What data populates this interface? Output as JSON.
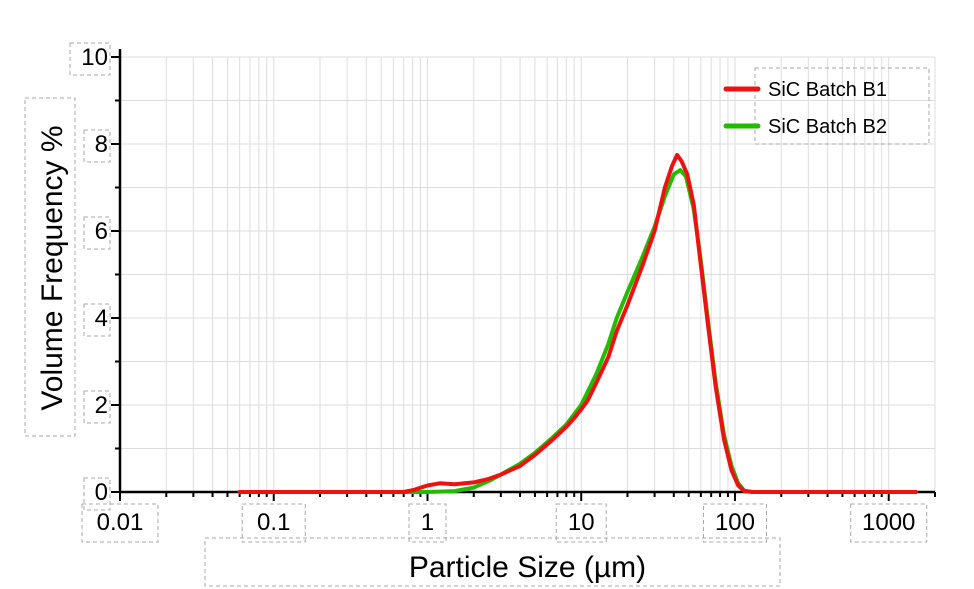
{
  "chart_data": {
    "type": "line",
    "xlabel": "Particle Size (µm)",
    "ylabel": "Volume Frequency %",
    "xscale": "log",
    "xlim": [
      0.01,
      2000
    ],
    "ylim": [
      0,
      10
    ],
    "x_ticks": [
      {
        "value": 0.01,
        "label": "0.01"
      },
      {
        "value": 0.1,
        "label": "0.1"
      },
      {
        "value": 1,
        "label": "1"
      },
      {
        "value": 10,
        "label": "10"
      },
      {
        "value": 100,
        "label": "100"
      },
      {
        "value": 1000,
        "label": "1000"
      }
    ],
    "y_ticks": [
      {
        "value": 0,
        "label": "0"
      },
      {
        "value": 2,
        "label": "2"
      },
      {
        "value": 4,
        "label": "4"
      },
      {
        "value": 6,
        "label": "6"
      },
      {
        "value": 8,
        "label": "8"
      },
      {
        "value": 10,
        "label": "10"
      }
    ],
    "grid": true,
    "legend": {
      "position": "top-right"
    },
    "series": [
      {
        "name": "SiC Batch B1",
        "color": "#ee1111",
        "points": [
          [
            0.06,
            0
          ],
          [
            0.7,
            0
          ],
          [
            0.82,
            0.05
          ],
          [
            1.0,
            0.15
          ],
          [
            1.2,
            0.2
          ],
          [
            1.5,
            0.18
          ],
          [
            2.0,
            0.22
          ],
          [
            2.5,
            0.3
          ],
          [
            3.0,
            0.4
          ],
          [
            4.0,
            0.6
          ],
          [
            5.0,
            0.85
          ],
          [
            6.5,
            1.2
          ],
          [
            8.0,
            1.5
          ],
          [
            9.0,
            1.7
          ],
          [
            10.0,
            1.9
          ],
          [
            11.0,
            2.1
          ],
          [
            12.5,
            2.5
          ],
          [
            15.0,
            3.1
          ],
          [
            17.0,
            3.7
          ],
          [
            20.0,
            4.3
          ],
          [
            25.0,
            5.2
          ],
          [
            30.0,
            6.0
          ],
          [
            35.0,
            7.0
          ],
          [
            39.0,
            7.5
          ],
          [
            42.0,
            7.75
          ],
          [
            45.0,
            7.6
          ],
          [
            49.0,
            7.3
          ],
          [
            54.0,
            6.6
          ],
          [
            60.0,
            5.2
          ],
          [
            67.0,
            3.8
          ],
          [
            75.0,
            2.4
          ],
          [
            85.0,
            1.2
          ],
          [
            95.0,
            0.5
          ],
          [
            105.0,
            0.15
          ],
          [
            115.0,
            0.02
          ],
          [
            130.0,
            0
          ],
          [
            1500.0,
            0
          ]
        ]
      },
      {
        "name": "SiC Batch B2",
        "color": "#22bb00",
        "points": [
          [
            0.06,
            0
          ],
          [
            1.0,
            0
          ],
          [
            1.5,
            0.02
          ],
          [
            2.0,
            0.1
          ],
          [
            2.5,
            0.25
          ],
          [
            3.0,
            0.4
          ],
          [
            4.0,
            0.65
          ],
          [
            5.0,
            0.9
          ],
          [
            6.5,
            1.25
          ],
          [
            8.0,
            1.55
          ],
          [
            10.0,
            2.0
          ],
          [
            12.5,
            2.7
          ],
          [
            15.0,
            3.4
          ],
          [
            17.0,
            4.0
          ],
          [
            20.0,
            4.6
          ],
          [
            25.0,
            5.4
          ],
          [
            30.0,
            6.1
          ],
          [
            35.0,
            6.8
          ],
          [
            40.0,
            7.3
          ],
          [
            44.0,
            7.4
          ],
          [
            48.0,
            7.25
          ],
          [
            54.0,
            6.5
          ],
          [
            60.0,
            5.3
          ],
          [
            67.0,
            3.9
          ],
          [
            75.0,
            2.5
          ],
          [
            85.0,
            1.3
          ],
          [
            95.0,
            0.6
          ],
          [
            105.0,
            0.2
          ],
          [
            115.0,
            0.03
          ],
          [
            130.0,
            0
          ],
          [
            1500.0,
            0
          ]
        ]
      }
    ]
  }
}
